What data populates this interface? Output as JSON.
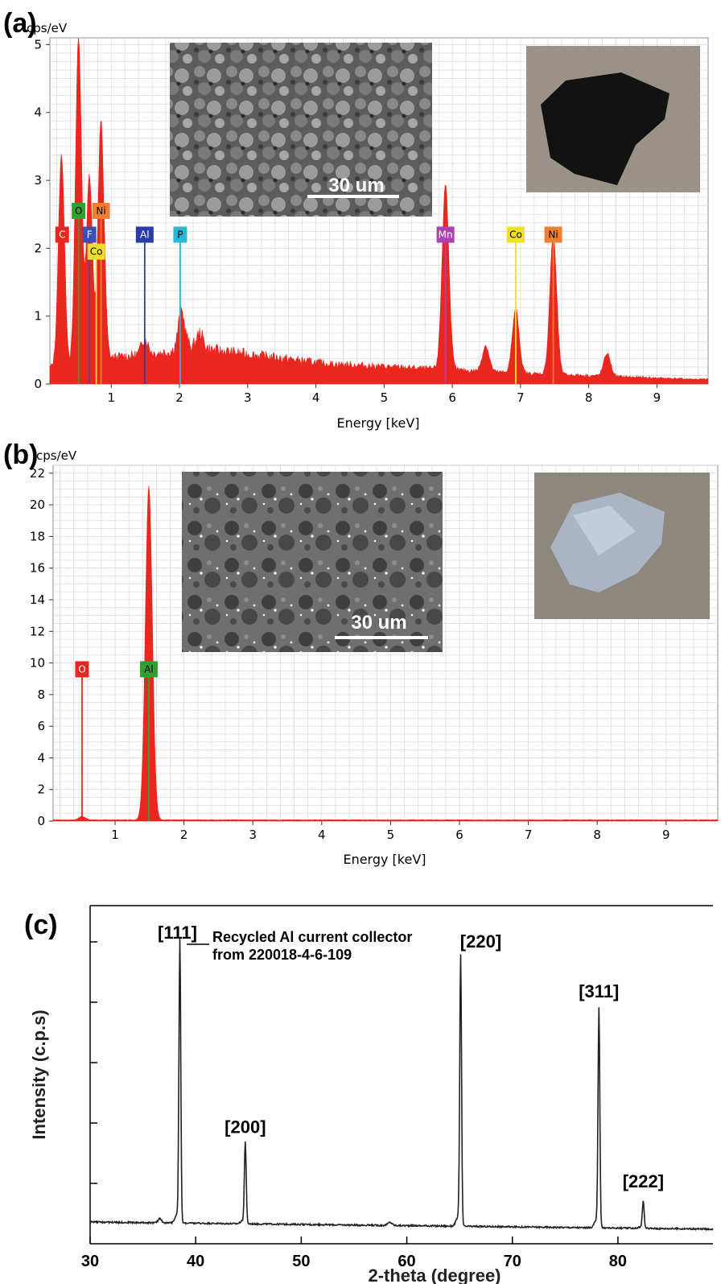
{
  "chart_data": [
    {
      "panel": "(a)",
      "type": "area",
      "ylabel": "cps/eV",
      "xlabel": "Energy [keV]",
      "xlim": [
        0.1,
        9.75
      ],
      "ylim": [
        0,
        5.1
      ],
      "xticks": [
        1,
        2,
        3,
        4,
        5,
        6,
        7,
        8,
        9
      ],
      "yticks": [
        0,
        1,
        2,
        3,
        4,
        5
      ],
      "grid": true,
      "spectrum_color": "#e8271f",
      "peaks": [
        {
          "x": 0.27,
          "y": 3.35
        },
        {
          "x": 0.52,
          "y": 5.1
        },
        {
          "x": 0.68,
          "y": 3.05
        },
        {
          "x": 0.85,
          "y": 3.85
        },
        {
          "x": 1.49,
          "y": 0.62
        },
        {
          "x": 2.03,
          "y": 1.02
        },
        {
          "x": 2.3,
          "y": 0.7
        },
        {
          "x": 5.9,
          "y": 2.92
        },
        {
          "x": 6.49,
          "y": 0.55
        },
        {
          "x": 6.93,
          "y": 1.08
        },
        {
          "x": 7.48,
          "y": 2.18
        },
        {
          "x": 8.27,
          "y": 0.44
        }
      ],
      "element_markers": [
        {
          "label": "C",
          "x": 0.28,
          "level": 2.2,
          "color": "#e8271f"
        },
        {
          "label": "O",
          "x": 0.52,
          "level": 2.55,
          "color": "#2fa12f"
        },
        {
          "label": "Ni",
          "x": 0.85,
          "level": 2.55,
          "color": "#f08030"
        },
        {
          "label": "F",
          "x": 0.68,
          "level": 2.2,
          "color": "#3b4fb5"
        },
        {
          "label": "Co",
          "x": 0.78,
          "level": 1.95,
          "color": "#f0e02a"
        },
        {
          "label": "Al",
          "x": 1.49,
          "level": 2.2,
          "color": "#2a3ca8"
        },
        {
          "label": "P",
          "x": 2.01,
          "level": 2.2,
          "color": "#2ab8d8"
        },
        {
          "label": "Mn",
          "x": 5.9,
          "level": 2.2,
          "color": "#b040b0"
        },
        {
          "label": "Co",
          "x": 6.93,
          "level": 2.2,
          "color": "#f0e02a"
        },
        {
          "label": "Ni",
          "x": 7.48,
          "level": 2.2,
          "color": "#f08030"
        }
      ],
      "inset_scale_bar": "30 um"
    },
    {
      "panel": "(b)",
      "type": "area",
      "ylabel": "cps/eV",
      "xlabel": "Energy [keV]",
      "xlim": [
        0.1,
        9.75
      ],
      "ylim": [
        0,
        22.5
      ],
      "xticks": [
        1,
        2,
        3,
        4,
        5,
        6,
        7,
        8,
        9
      ],
      "yticks": [
        0,
        2,
        4,
        6,
        8,
        10,
        12,
        14,
        16,
        18,
        20,
        22
      ],
      "grid": true,
      "spectrum_color": "#e8271f",
      "peaks": [
        {
          "x": 0.52,
          "y": 0.3
        },
        {
          "x": 1.49,
          "y": 21.2
        }
      ],
      "element_markers": [
        {
          "label": "O",
          "x": 0.52,
          "level": 9.6,
          "color": "#e8271f"
        },
        {
          "label": "Al",
          "x": 1.49,
          "level": 9.6,
          "color": "#2fa12f"
        }
      ],
      "inset_scale_bar": "30 um"
    },
    {
      "panel": "(c)",
      "type": "line",
      "xlabel": "2-theta (degree)",
      "ylabel": "Intensity (c.p.s)",
      "xlim": [
        30,
        89
      ],
      "ylim": [
        0,
        1.12
      ],
      "xticks": [
        30,
        40,
        50,
        60,
        70,
        80
      ],
      "legend": "Recycled Al current collector from 220018-4-6-109",
      "line_color": "#222222",
      "peaks": [
        {
          "x": 38.5,
          "y": 1.0,
          "label": "[111]"
        },
        {
          "x": 44.7,
          "y": 0.34,
          "label": "[200]"
        },
        {
          "x": 65.1,
          "y": 0.96,
          "label": "[220]"
        },
        {
          "x": 78.2,
          "y": 0.79,
          "label": "[311]"
        },
        {
          "x": 82.4,
          "y": 0.16,
          "label": "[222]"
        }
      ]
    }
  ]
}
